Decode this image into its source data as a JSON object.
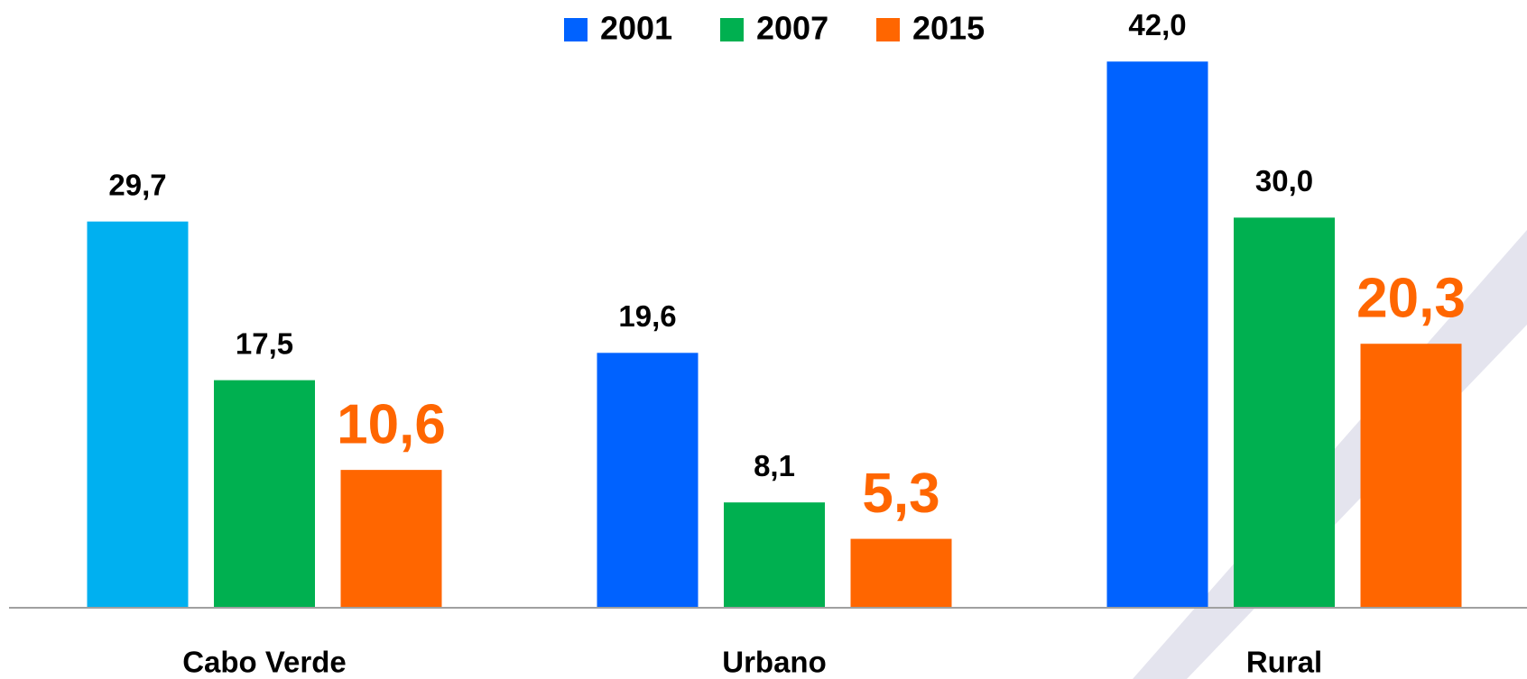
{
  "chart_data": {
    "type": "bar",
    "categories": [
      "Cabo Verde",
      "Urbano",
      "Rural"
    ],
    "series": [
      {
        "name": "2001",
        "color": "#0062ff",
        "colors": [
          "#00b0f0",
          "#0062ff",
          "#0062ff"
        ],
        "values": [
          29.7,
          19.6,
          42.0
        ],
        "value_labels": [
          "29,7",
          "19,6",
          "42,0"
        ]
      },
      {
        "name": "2007",
        "color": "#00b050",
        "values": [
          17.5,
          8.1,
          30.0
        ],
        "value_labels": [
          "17,5",
          "8,1",
          "30,0"
        ]
      },
      {
        "name": "2015",
        "color": "#ff6600",
        "values": [
          10.6,
          5.3,
          20.3
        ],
        "value_labels": [
          "10,6",
          "5,3",
          "20,3"
        ]
      }
    ],
    "ylim": [
      0,
      45
    ],
    "legend": "top"
  }
}
